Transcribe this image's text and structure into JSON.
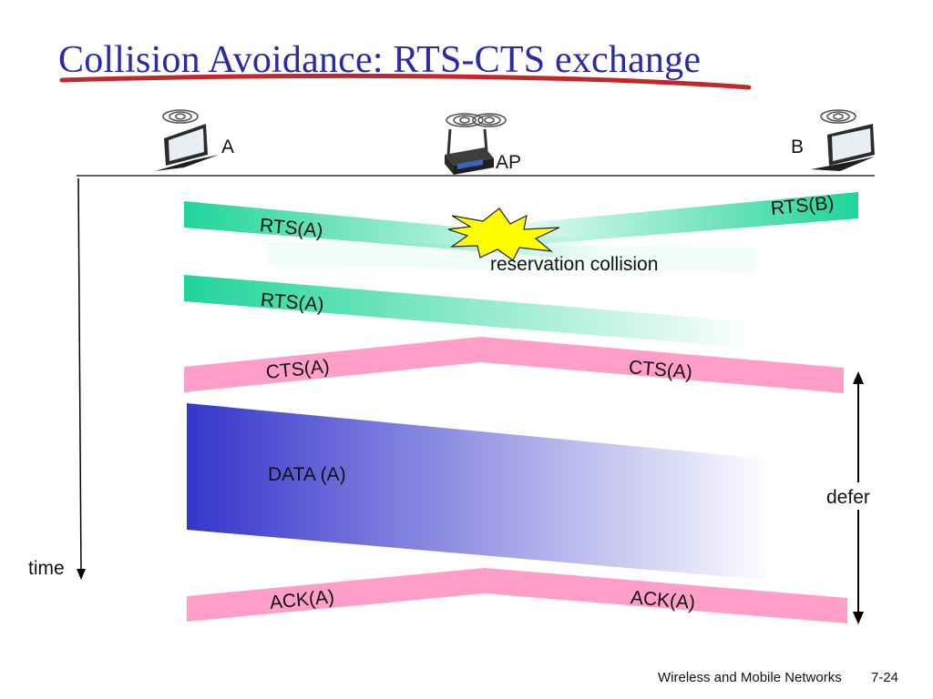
{
  "slide": {
    "title": "Collision Avoidance: RTS-CTS exchange",
    "accent_color": "#2a2aa8",
    "underline_color": "#c0282a"
  },
  "nodes": {
    "a": {
      "label": "A",
      "icon": "laptop-icon"
    },
    "ap": {
      "label": "AP",
      "icon": "wireless-router-icon"
    },
    "b": {
      "label": "B",
      "icon": "laptop-icon"
    }
  },
  "messages": {
    "rts_a_1": "RTS(A)",
    "rts_b": "RTS(B)",
    "collision": "reservation collision",
    "rts_a_2": "RTS(A)",
    "cts_left": "CTS(A)",
    "cts_right": "CTS(A)",
    "data": "DATA (A)",
    "ack_left": "ACK(A)",
    "ack_right": "ACK(A)"
  },
  "annotations": {
    "defer": "defer",
    "time": "time"
  },
  "colors": {
    "rts": "#1fd49a",
    "cts_ack": "#ff9ec8",
    "data": "#3535cc",
    "collision": "#ffff00"
  },
  "footer": {
    "course": "Wireless and Mobile Networks",
    "page": "7-24"
  }
}
